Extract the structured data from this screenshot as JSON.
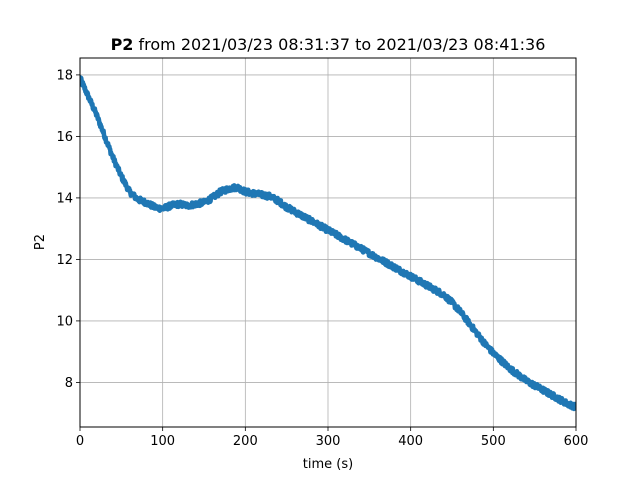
{
  "chart_data": {
    "type": "line",
    "title": {
      "bold": "P2",
      "rest": " from 2021/03/23 08:31:37 to 2021/03/23 08:41:36"
    },
    "xlabel": "time (s)",
    "ylabel": "P2",
    "xlim": [
      0,
      600
    ],
    "ylim": [
      6.55,
      18.55
    ],
    "grid": true,
    "xticks": [
      0,
      100,
      200,
      300,
      400,
      500,
      600
    ],
    "yticks": [
      8,
      10,
      12,
      14,
      16,
      18
    ],
    "line_color": "#1f77b4",
    "series": [
      {
        "x": [
          0,
          10,
          20,
          30,
          40,
          50,
          60,
          70,
          80,
          90,
          100,
          110,
          120,
          130,
          140,
          150,
          160,
          170,
          180,
          190,
          200,
          210,
          220,
          230,
          240,
          250,
          260,
          270,
          280,
          290,
          300,
          310,
          320,
          330,
          340,
          350,
          360,
          370,
          380,
          390,
          400,
          410,
          420,
          430,
          440,
          450,
          460,
          470,
          480,
          490,
          500,
          510,
          520,
          530,
          540,
          550,
          560,
          570,
          580,
          590,
          600
        ],
        "values": [
          17.9,
          17.3,
          16.7,
          16.0,
          15.3,
          14.7,
          14.2,
          13.95,
          13.85,
          13.7,
          13.65,
          13.75,
          13.8,
          13.75,
          13.8,
          13.85,
          14.0,
          14.2,
          14.3,
          14.35,
          14.2,
          14.15,
          14.1,
          14.05,
          13.9,
          13.7,
          13.55,
          13.4,
          13.25,
          13.1,
          12.95,
          12.8,
          12.65,
          12.5,
          12.35,
          12.2,
          12.05,
          11.9,
          11.75,
          11.6,
          11.45,
          11.3,
          11.15,
          11.0,
          10.85,
          10.6,
          10.3,
          9.95,
          9.6,
          9.25,
          8.95,
          8.7,
          8.45,
          8.25,
          8.05,
          7.9,
          7.75,
          7.6,
          7.45,
          7.3,
          7.2
        ]
      }
    ]
  }
}
